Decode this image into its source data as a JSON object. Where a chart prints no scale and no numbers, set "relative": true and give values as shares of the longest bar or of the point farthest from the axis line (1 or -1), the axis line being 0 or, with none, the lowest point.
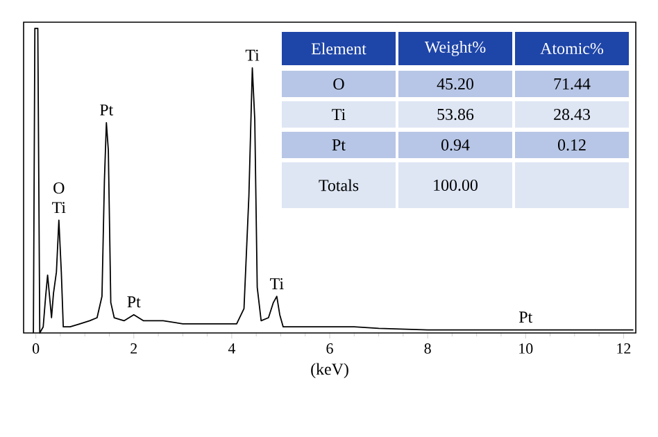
{
  "chart_data": {
    "type": "line",
    "relative": true,
    "xlabel": "(keV)",
    "xlim": [
      -0.25,
      12.25
    ],
    "xticks": [
      0,
      2,
      4,
      6,
      8,
      10,
      12
    ],
    "series": [
      {
        "color": "#000000",
        "x": [
          -0.05,
          -0.02,
          0.04,
          0.08,
          0.15,
          0.2,
          0.24,
          0.28,
          0.32,
          0.36,
          0.42,
          0.47,
          0.52,
          0.56,
          0.7,
          0.9,
          1.1,
          1.25,
          1.35,
          1.4,
          1.44,
          1.48,
          1.53,
          1.6,
          1.8,
          2.0,
          2.2,
          2.6,
          3.0,
          3.4,
          3.8,
          4.1,
          4.25,
          4.35,
          4.42,
          4.47,
          4.52,
          4.6,
          4.75,
          4.85,
          4.92,
          4.98,
          5.05,
          5.5,
          6.0,
          6.5,
          7.0,
          8.0,
          9.0,
          10.0,
          11.0,
          12.2
        ],
        "values": [
          0,
          1.0,
          1.0,
          0.0,
          0.02,
          0.12,
          0.19,
          0.12,
          0.05,
          0.13,
          0.2,
          0.37,
          0.2,
          0.02,
          0.02,
          0.03,
          0.04,
          0.05,
          0.12,
          0.5,
          0.69,
          0.6,
          0.1,
          0.05,
          0.04,
          0.06,
          0.04,
          0.04,
          0.03,
          0.03,
          0.03,
          0.03,
          0.08,
          0.45,
          0.87,
          0.7,
          0.15,
          0.04,
          0.05,
          0.1,
          0.12,
          0.06,
          0.02,
          0.02,
          0.02,
          0.02,
          0.015,
          0.01,
          0.01,
          0.01,
          0.01,
          0.01
        ]
      }
    ],
    "annotations": [
      {
        "text": "O",
        "x": 0.47,
        "y": 0.37
      },
      {
        "text": "Ti",
        "x": 0.47,
        "y": 0.37
      },
      {
        "text": "Pt",
        "x": 1.44,
        "y": 0.69
      },
      {
        "text": "Pt",
        "x": 2.0,
        "y": 0.06
      },
      {
        "text": "Ti",
        "x": 4.42,
        "y": 0.87
      },
      {
        "text": "Ti",
        "x": 4.92,
        "y": 0.12
      },
      {
        "text": "Pt",
        "x": 10.0,
        "y": 0.01
      },
      "Element",
      "Weight%",
      "Atomic%",
      "O",
      "45.20",
      "71.44",
      "Ti",
      "53.86",
      "28.43",
      "Pt",
      "0.94",
      "0.12",
      "Totals",
      "100.00"
    ]
  }
}
